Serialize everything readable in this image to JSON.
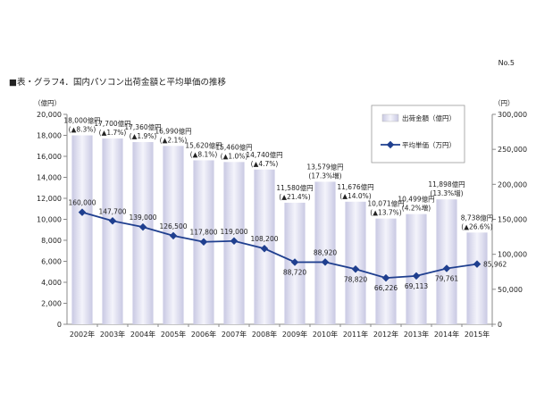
{
  "page_number": "No.5",
  "chart_data": {
    "type": "bar+line",
    "title": "■表・グラフ4．国内パソコン出荷金額と平均単価の推移",
    "categories": [
      "2002年",
      "2003年",
      "2004年",
      "2005年",
      "2006年",
      "2007年",
      "2008年",
      "2009年",
      "2010年",
      "2011年",
      "2012年",
      "2013年",
      "2014年",
      "2015年"
    ],
    "series": [
      {
        "name": "出荷金額（億円）",
        "axis": "left",
        "kind": "bar",
        "values": [
          18000,
          17700,
          17360,
          16990,
          15620,
          15460,
          14740,
          11580,
          13579,
          11676,
          10071,
          10499,
          11898,
          8738
        ],
        "labels": [
          [
            "18,000億円",
            "(▲8.3%)"
          ],
          [
            "17,700億円",
            "(▲1.7%)"
          ],
          [
            "17,360億円",
            "(▲1.9%)"
          ],
          [
            "16,990億円",
            "(▲2.1%)"
          ],
          [
            "15,620億円",
            "(▲8.1%)"
          ],
          [
            "15,460億円",
            "(▲1.0%)"
          ],
          [
            "14,740億円",
            "(▲4.7%)"
          ],
          [
            "11,580億円",
            "(▲21.4%)"
          ],
          [
            "13,579億円",
            "(17.3%増)"
          ],
          [
            "11,676億円",
            "(▲14.0%)"
          ],
          [
            "10,071億円",
            "(▲13.7%)"
          ],
          [
            "10,499億円",
            "(4.2%増)"
          ],
          [
            "11,898億円",
            "(13.3%増)"
          ],
          [
            "8,738億円",
            "(▲26.6%)"
          ]
        ]
      },
      {
        "name": "平均単価（万円）",
        "axis": "right",
        "kind": "line",
        "values": [
          160000,
          147700,
          139000,
          126500,
          117800,
          119000,
          108200,
          88720,
          88920,
          78820,
          66226,
          69113,
          79761,
          85962
        ],
        "labels": [
          "160,000",
          "147,700",
          "139,000",
          "126,500",
          "117,800",
          "119,000",
          "108,200",
          "88,720",
          "88,920",
          "78,820",
          "66,226",
          "69,113",
          "79,761",
          "85,962"
        ]
      }
    ],
    "left_axis": {
      "unit": "（億円）",
      "min": 0,
      "max": 20000,
      "step": 2000,
      "ticks": [
        "0",
        "2,000",
        "4,000",
        "6,000",
        "8,000",
        "10,000",
        "12,000",
        "14,000",
        "16,000",
        "18,000",
        "20,000"
      ]
    },
    "right_axis": {
      "unit": "（円）",
      "min": 0,
      "max": 300000,
      "step": 50000,
      "ticks": [
        "0",
        "50,000",
        "100,000",
        "150,000",
        "200,000",
        "250,000",
        "300,000"
      ]
    },
    "legend": {
      "position": "top-right",
      "items": [
        "出荷金額（億円）",
        "平均単価（万円）"
      ]
    },
    "colors": {
      "bar_light": "#f4f4fb",
      "bar_dark": "#c9c9e3",
      "line": "#1f3f8f",
      "axis": "#888888"
    }
  }
}
